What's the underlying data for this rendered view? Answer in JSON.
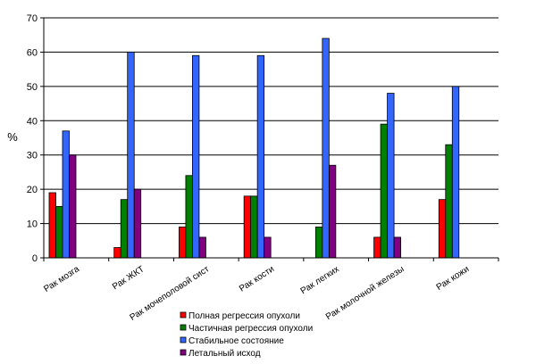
{
  "chart_data": {
    "type": "bar",
    "title": "",
    "xlabel": "",
    "ylabel": "%",
    "ylim": [
      0,
      70
    ],
    "yticks": [
      "0",
      "10",
      "20",
      "30",
      "40",
      "50",
      "60",
      "70"
    ],
    "grid": true,
    "legend_position": "bottom",
    "categories": [
      "Рак мозга",
      "Рак ЖКТ",
      "Рак мочеполовой сист",
      "Рак кости",
      "Рак легких",
      "Рак молочной железы",
      "Рак кожи"
    ],
    "series": [
      {
        "name": "Полная регрессия опухоли",
        "color": "#ff0000",
        "values": [
          19,
          3,
          9,
          18,
          0,
          6,
          17
        ]
      },
      {
        "name": "Частичная регрессия опухоли",
        "color": "#008000",
        "values": [
          15,
          17,
          24,
          18,
          9,
          39,
          33
        ]
      },
      {
        "name": "Стабильное состояние",
        "color": "#3366ff",
        "values": [
          37,
          60,
          59,
          59,
          64,
          48,
          50
        ]
      },
      {
        "name": "Летальный исход",
        "color": "#800080",
        "values": [
          30,
          20,
          6,
          6,
          27,
          6,
          0
        ]
      }
    ]
  }
}
